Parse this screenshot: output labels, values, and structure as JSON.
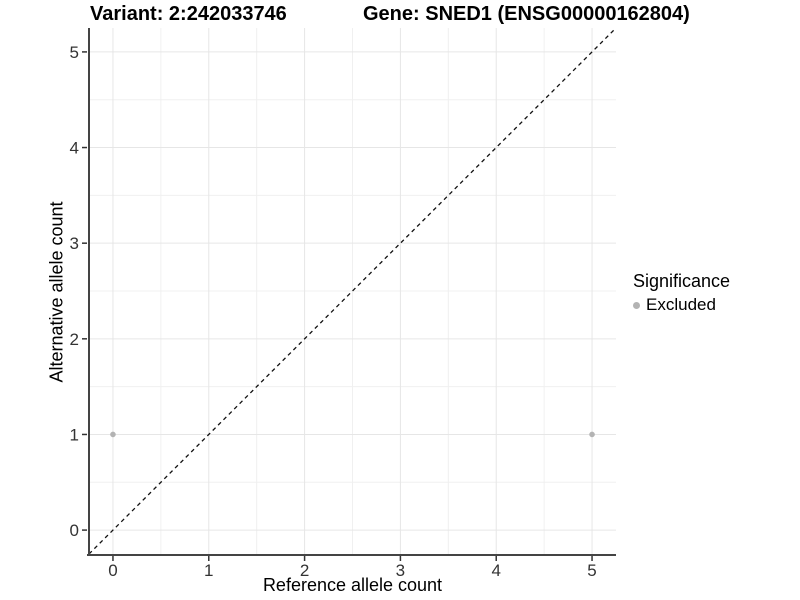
{
  "header": {
    "left_title": "Variant: 2:242033746",
    "right_title": "Gene: SNED1 (ENSG00000162804)"
  },
  "chart_data": {
    "type": "scatter",
    "xlabel": "Reference allele count",
    "ylabel": "Alternative allele count",
    "xlim": [
      -0.25,
      5.25
    ],
    "ylim": [
      -0.25,
      5.25
    ],
    "x_ticks": [
      0,
      1,
      2,
      3,
      4,
      5
    ],
    "y_ticks": [
      0,
      1,
      2,
      3,
      4,
      5
    ],
    "x_minor_ticks": [
      0.5,
      1.5,
      2.5,
      3.5,
      4.5
    ],
    "y_minor_ticks": [
      0.5,
      1.5,
      2.5,
      3.5,
      4.5
    ],
    "grid": "major and minor, on white background",
    "series": [
      {
        "name": "Excluded",
        "color": "#b3b3b3",
        "marker": "circle",
        "points": [
          {
            "x": 0,
            "y": 1
          },
          {
            "x": 5,
            "y": 1
          }
        ]
      }
    ],
    "reference_line": {
      "description": "identity line y = x",
      "style": "dashed",
      "color": "#111111"
    },
    "legend": {
      "title": "Significance",
      "position": "right",
      "entries": [
        {
          "label": "Excluded",
          "color": "#b3b3b3",
          "marker": "circle"
        }
      ]
    },
    "style": {
      "grid_major_color": "#e6e6e6",
      "grid_minor_color": "#f0f0f0",
      "axis_line_color": "#444444",
      "tick_color": "#333333",
      "tick_label_color": "#333333"
    }
  }
}
